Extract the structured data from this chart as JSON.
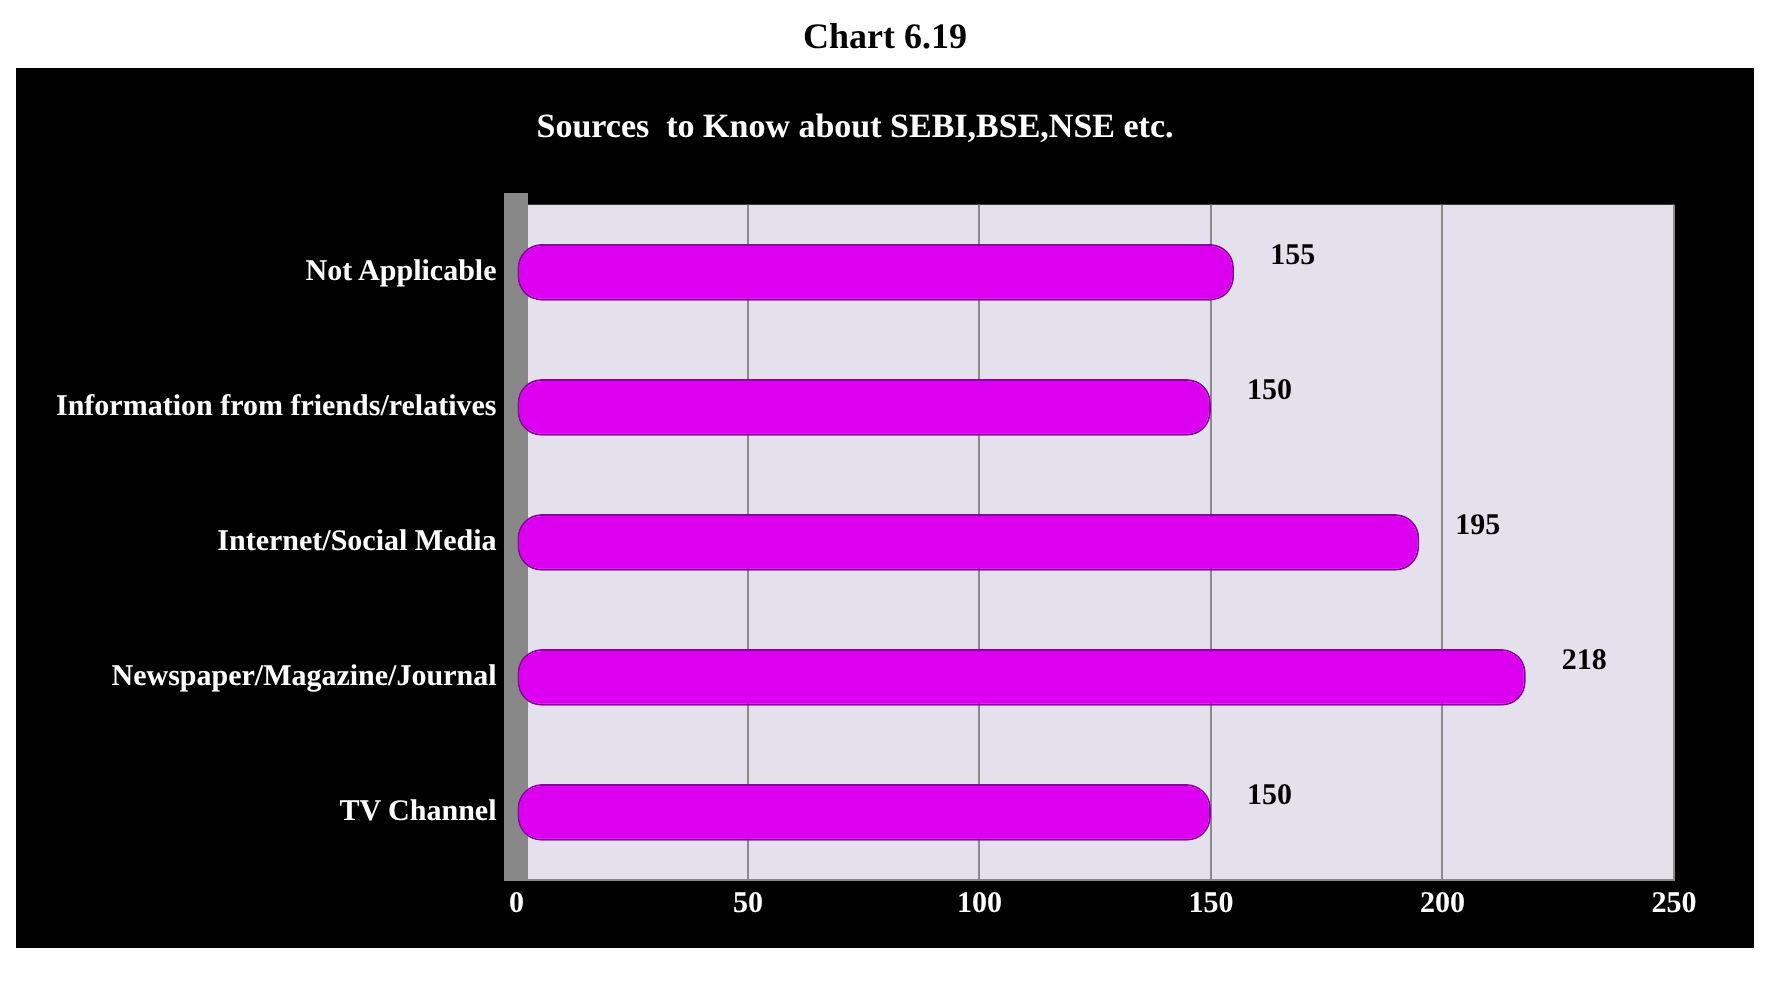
{
  "chart_data": {
    "type": "bar",
    "orientation": "horizontal",
    "title": "Sources  to Know about SEBI,BSE,NSE etc.",
    "annotations": [
      "Chart 6.19"
    ],
    "categories": [
      "Not Applicable",
      "Information from friends/relatives",
      "Internet/Social Media",
      "Newspaper/Magazine/Journal",
      "TV Channel"
    ],
    "values": [
      155,
      150,
      195,
      218,
      150
    ],
    "color": "#dd00f0",
    "xlim": [
      0,
      250
    ],
    "xticks": [
      0,
      50,
      100,
      150,
      200,
      250
    ],
    "grid": "x",
    "data_labels": true,
    "legend": false
  }
}
